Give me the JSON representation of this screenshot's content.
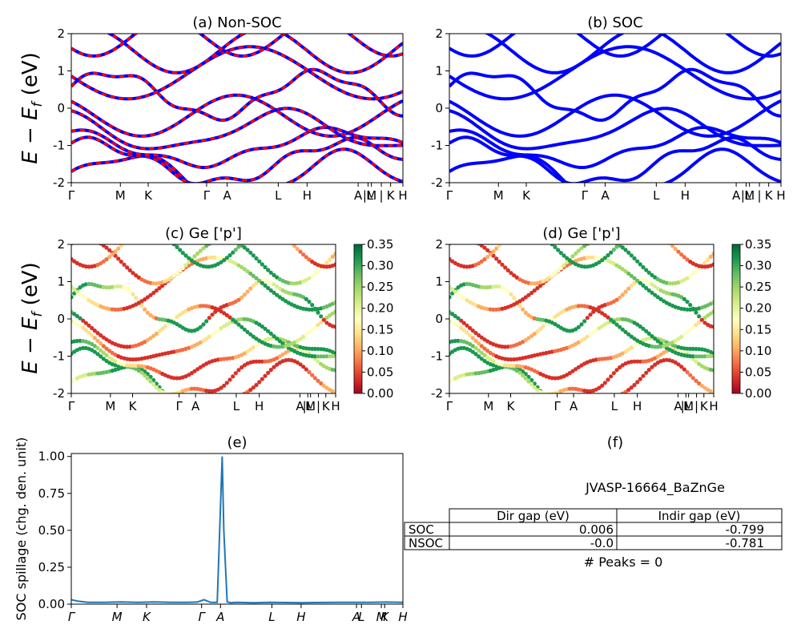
{
  "figure": {
    "ylabel_main": "E − E",
    "ylabel_sub": "f",
    "ylabel_unit": " (eV)",
    "kpath_labels": [
      "Γ",
      "M",
      "K",
      "Γ",
      "A",
      "L",
      "H",
      "A",
      "|L",
      "M",
      "|",
      "K",
      "H"
    ],
    "kpath_positions": [
      0,
      0.148,
      0.232,
      0.408,
      0.47,
      0.624,
      0.711,
      0.865,
      0.895,
      0.905,
      0.935,
      0.963,
      1.0
    ]
  },
  "chart_data": [
    {
      "panel": "a",
      "type": "line",
      "title": "(a) Non-SOC",
      "ylim": [
        -2,
        2
      ],
      "yticks": [
        -2,
        -1,
        0,
        1,
        2
      ],
      "series": [
        {
          "color": "#0000ff",
          "style": "solid"
        },
        {
          "color": "#ff0000",
          "style": "dashed"
        }
      ]
    },
    {
      "panel": "b",
      "type": "line",
      "title": "(b) SOC",
      "ylim": [
        -2,
        2
      ],
      "yticks": [
        -2,
        -1,
        0,
        1,
        2
      ],
      "series": [
        {
          "color": "#0000ff",
          "style": "solid"
        }
      ]
    },
    {
      "panel": "c",
      "type": "scatter",
      "title": "(c)  Ge ['p']",
      "ylim": [
        -2,
        2
      ],
      "yticks": [
        -2,
        -1,
        0,
        1,
        2
      ],
      "colorbar": {
        "min": 0.0,
        "max": 0.35,
        "ticks": [
          "0.00",
          "0.05",
          "0.10",
          "0.15",
          "0.20",
          "0.25",
          "0.30",
          "0.35"
        ],
        "cmap": "RdYlGn"
      }
    },
    {
      "panel": "d",
      "type": "scatter",
      "title": "(d) Ge ['p']",
      "ylim": [
        -2,
        2
      ],
      "yticks": [
        -2,
        -1,
        0,
        1,
        2
      ],
      "colorbar": {
        "min": 0.0,
        "max": 0.35,
        "ticks": [
          "0.00",
          "0.05",
          "0.10",
          "0.15",
          "0.20",
          "0.25",
          "0.30",
          "0.35"
        ],
        "cmap": "RdYlGn"
      }
    },
    {
      "panel": "e",
      "type": "line",
      "title": "(e)",
      "ylabel": "SOC spillage (chg. den. unit)",
      "ylim": [
        0,
        1.02
      ],
      "yticks": [
        "0.00",
        "0.25",
        "0.50",
        "0.75",
        "1.00"
      ],
      "xtick_labels": [
        "Γ",
        "M",
        "K",
        "Γ",
        "A",
        "L",
        "H",
        "A",
        "L",
        "M",
        "K",
        "H"
      ],
      "color": "#1f77b4",
      "x": [
        0,
        0.02,
        0.05,
        0.1,
        0.15,
        0.2,
        0.25,
        0.3,
        0.35,
        0.38,
        0.4,
        0.42,
        0.44,
        0.455,
        0.46,
        0.47,
        0.48,
        0.5,
        0.55,
        0.6,
        0.7,
        0.8,
        0.9,
        0.95,
        1.0
      ],
      "values": [
        0.03,
        0.02,
        0.012,
        0.012,
        0.015,
        0.012,
        0.015,
        0.012,
        0.012,
        0.014,
        0.03,
        0.012,
        0.012,
        1.0,
        0.5,
        0.015,
        0.01,
        0.012,
        0.01,
        0.012,
        0.01,
        0.012,
        0.012,
        0.014,
        0.012
      ]
    },
    {
      "panel": "f",
      "type": "table",
      "title": "(f)",
      "material": "JVASP-16664_BaZnGe",
      "columns": [
        "",
        "Dir gap (eV)",
        "Indir gap (eV)"
      ],
      "rows": [
        {
          "label": "SOC",
          "dir_gap": "0.006",
          "indir_gap": "-0.799"
        },
        {
          "label": "NSOC",
          "dir_gap": "-0.0",
          "indir_gap": "-0.781"
        }
      ],
      "peaks": "# Peaks = 0"
    }
  ]
}
